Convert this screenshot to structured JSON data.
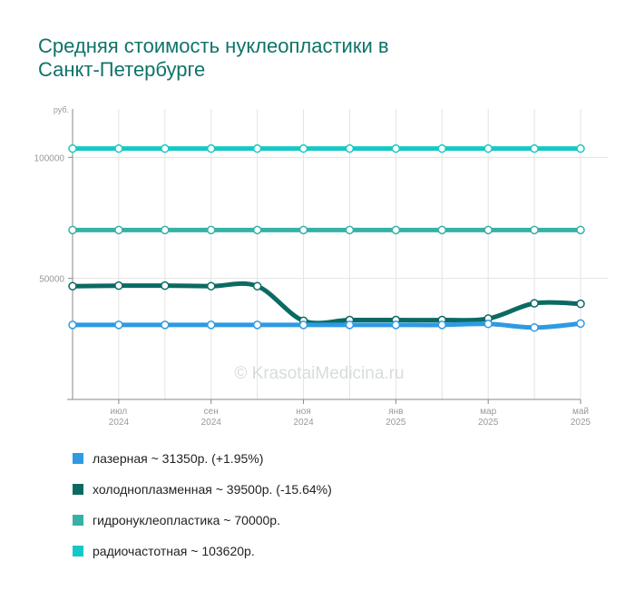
{
  "title_line1": "Средняя стоимость нуклеопластики в",
  "title_line2": "Санкт-Петербурге",
  "watermark": "© KrasotaiMedicina.ru",
  "chart_data": {
    "type": "line",
    "title": "Средняя стоимость нуклеопластики в Санкт-Петербурге",
    "ylabel": "руб.",
    "ylim": [
      0,
      120000
    ],
    "yticks": [
      50000,
      100000
    ],
    "grid": true,
    "legend_position": "bottom",
    "x": [
      "2024-06",
      "2024-07",
      "2024-08",
      "2024-09",
      "2024-10",
      "2024-11",
      "2024-12",
      "2025-01",
      "2025-02",
      "2025-03",
      "2025-04",
      "2025-05"
    ],
    "x_tick_labels": [
      {
        "index": 1,
        "month": "июл",
        "year": "2024"
      },
      {
        "index": 3,
        "month": "сен",
        "year": "2024"
      },
      {
        "index": 5,
        "month": "ноя",
        "year": "2024"
      },
      {
        "index": 7,
        "month": "янв",
        "year": "2025"
      },
      {
        "index": 9,
        "month": "мар",
        "year": "2025"
      },
      {
        "index": 11,
        "month": "май",
        "year": "2025"
      }
    ],
    "series": [
      {
        "name": "лазерная",
        "color": "#2f9ae3",
        "values": [
          30800,
          30800,
          30800,
          30800,
          30800,
          30800,
          30800,
          30800,
          30800,
          31200,
          29700,
          31350
        ]
      },
      {
        "name": "холодноплазменная",
        "color": "#0b6b63",
        "values": [
          46800,
          47000,
          47000,
          46800,
          46800,
          32500,
          32800,
          32800,
          32800,
          33400,
          39700,
          39500
        ]
      },
      {
        "name": "гидронуклеопластика",
        "color": "#37b1a6",
        "values": [
          70000,
          70000,
          70000,
          70000,
          70000,
          70000,
          70000,
          70000,
          70000,
          70000,
          70000,
          70000
        ]
      },
      {
        "name": "радиочастотная",
        "color": "#14c8c6",
        "values": [
          103620,
          103620,
          103620,
          103620,
          103620,
          103620,
          103620,
          103620,
          103620,
          103620,
          103620,
          103620
        ]
      }
    ]
  },
  "legend": [
    {
      "text": "лазерная ~ 31350р. (+1.95%)",
      "color": "#2f9ae3"
    },
    {
      "text": "холодноплазменная ~ 39500р. (-15.64%)",
      "color": "#0b6b63"
    },
    {
      "text": "гидронуклеопластика ~ 70000р.",
      "color": "#37b1a6"
    },
    {
      "text": "радиочастотная ~ 103620р.",
      "color": "#14c8c6"
    }
  ]
}
